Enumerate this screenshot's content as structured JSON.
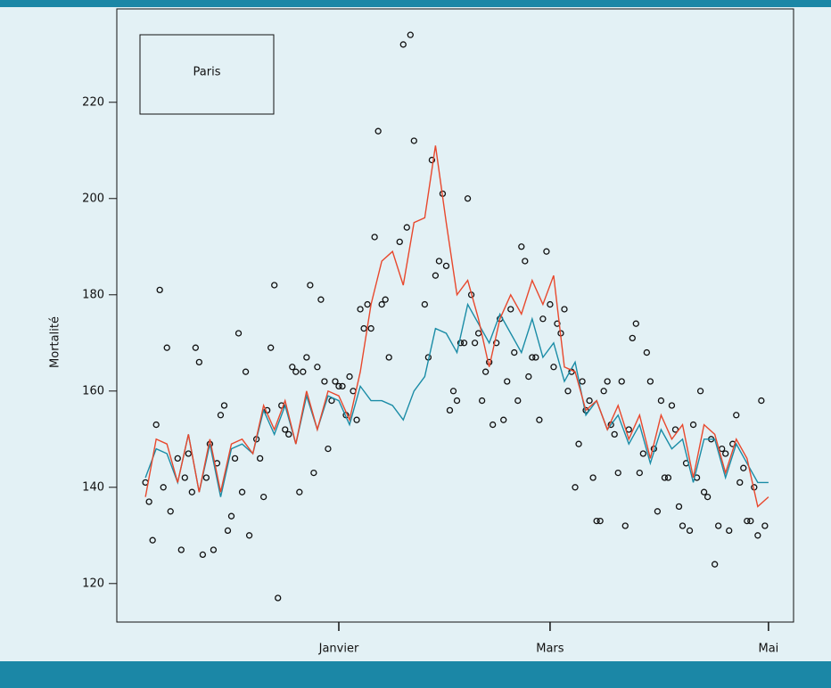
{
  "chart_data": {
    "type": "line",
    "title": "Paris",
    "y_label": "Mortalité",
    "xlim": [
      -62,
      127
    ],
    "ylim": [
      112,
      239.4
    ],
    "xticks": [
      {
        "value": 0,
        "label": "Janvier"
      },
      {
        "value": 59,
        "label": "Mars"
      },
      {
        "value": 120,
        "label": "Mai"
      }
    ],
    "yticks": [
      120,
      140,
      160,
      180,
      200,
      220
    ],
    "series": [
      {
        "type": "scatter",
        "color": "#111111",
        "x": [
          -54,
          -53,
          -52,
          -51,
          -50,
          -49,
          -48,
          -47,
          -45,
          -44,
          -43,
          -42,
          -41,
          -40,
          -39,
          -38,
          -37,
          -36,
          -35,
          -34,
          -33,
          -32,
          -31,
          -30,
          -29,
          -28,
          -27,
          -26,
          -25,
          -23,
          -22,
          -21,
          -20,
          -19,
          -18,
          -17,
          -16,
          -15,
          -14,
          -13,
          -12,
          -11,
          -10,
          -9,
          -8,
          -7,
          -6,
          -5,
          -4,
          -3,
          -2,
          -1,
          0,
          1,
          2,
          3,
          4,
          5,
          6,
          7,
          8,
          9,
          10,
          11,
          12,
          13,
          14,
          17,
          18,
          19,
          20,
          21,
          24,
          25,
          26,
          27,
          28,
          29,
          30,
          31,
          32,
          33,
          34,
          35,
          36,
          37,
          38,
          39,
          40,
          41,
          42,
          43,
          44,
          45,
          46,
          47,
          48,
          49,
          50,
          51,
          52,
          53,
          54,
          55,
          56,
          57,
          58,
          59,
          60,
          61,
          62,
          63,
          64,
          65,
          66,
          67,
          68,
          69,
          70,
          71,
          72,
          73,
          74,
          75,
          76,
          77,
          78,
          79,
          80,
          81,
          82,
          83,
          84,
          85,
          86,
          87,
          88,
          89,
          90,
          91,
          92,
          93,
          94,
          95,
          96,
          97,
          98,
          99,
          100,
          101,
          102,
          103,
          104,
          105,
          106,
          107,
          108,
          109,
          110,
          111,
          112,
          113,
          114,
          115,
          116,
          117,
          118,
          119
        ],
        "values": [
          141,
          137,
          129,
          153,
          181,
          140,
          169,
          135,
          146,
          127,
          142,
          147,
          139,
          169,
          166,
          126,
          142,
          149,
          127,
          145,
          155,
          157,
          131,
          134,
          146,
          172,
          139,
          164,
          130,
          150,
          146,
          138,
          156,
          169,
          182,
          117,
          157,
          152,
          151,
          165,
          164,
          139,
          164,
          167,
          182,
          143,
          165,
          179,
          162,
          148,
          158,
          162,
          161,
          161,
          155,
          163,
          160,
          154,
          177,
          173,
          178,
          173,
          192,
          214,
          178,
          179,
          167,
          191,
          232,
          194,
          234,
          212,
          178,
          167,
          208,
          184,
          187,
          201,
          186,
          156,
          160,
          158,
          170,
          170,
          200,
          180,
          170,
          172,
          158,
          164,
          166,
          153,
          170,
          175,
          154,
          162,
          177,
          168,
          158,
          190,
          187,
          163,
          167,
          167,
          154,
          175,
          189,
          178,
          165,
          174,
          172,
          177,
          160,
          164,
          140,
          149,
          162,
          156,
          158,
          142,
          133,
          133,
          160,
          162,
          153,
          151,
          143,
          162,
          132,
          152,
          171,
          174,
          143,
          147,
          168,
          162,
          148,
          135,
          158,
          142,
          142,
          157,
          152,
          136,
          132,
          145,
          131,
          153,
          142,
          160,
          139,
          138,
          150,
          124,
          132,
          148,
          147,
          131,
          149,
          155,
          141,
          144,
          133,
          133,
          140,
          130,
          158,
          132
        ]
      },
      {
        "type": "line",
        "color": "#1a8ca6",
        "x": [
          -54,
          -51,
          -48,
          -45,
          -42,
          -39,
          -36,
          -33,
          -30,
          -27,
          -24,
          -21,
          -18,
          -15,
          -12,
          -9,
          -6,
          -3,
          0,
          3,
          6,
          9,
          12,
          15,
          18,
          21,
          24,
          27,
          30,
          33,
          36,
          39,
          42,
          45,
          48,
          51,
          54,
          57,
          60,
          63,
          66,
          69,
          72,
          75,
          78,
          81,
          84,
          87,
          90,
          93,
          96,
          99,
          102,
          105,
          108,
          111,
          114,
          117,
          120
        ],
        "values": [
          142,
          148,
          147,
          141,
          151,
          139,
          149,
          138,
          148,
          149,
          147,
          156,
          151,
          157,
          149,
          159,
          152,
          159,
          158,
          153,
          161,
          158,
          158,
          157,
          154,
          160,
          163,
          173,
          172,
          168,
          178,
          174,
          170,
          176,
          172,
          168,
          175,
          167,
          170,
          162,
          166,
          155,
          158,
          152,
          155,
          149,
          153,
          145,
          152,
          148,
          150,
          141,
          150,
          150,
          142,
          149,
          145,
          141,
          141
        ]
      },
      {
        "type": "line",
        "color": "#e8482d",
        "x": [
          -54,
          -51,
          -48,
          -45,
          -42,
          -39,
          -36,
          -33,
          -30,
          -27,
          -24,
          -21,
          -18,
          -15,
          -12,
          -9,
          -6,
          -3,
          0,
          3,
          6,
          9,
          12,
          15,
          18,
          21,
          24,
          27,
          30,
          33,
          36,
          39,
          42,
          45,
          48,
          51,
          54,
          57,
          60,
          63,
          66,
          69,
          72,
          75,
          78,
          81,
          84,
          87,
          90,
          93,
          96,
          99,
          102,
          105,
          108,
          111,
          114,
          117,
          120
        ],
        "values": [
          138,
          150,
          149,
          141,
          151,
          139,
          150,
          139,
          149,
          150,
          147,
          157,
          152,
          158,
          149,
          160,
          152,
          160,
          159,
          154,
          164,
          178,
          187,
          189,
          182,
          195,
          196,
          211,
          195,
          180,
          183,
          175,
          165,
          175,
          180,
          176,
          183,
          178,
          184,
          165,
          164,
          156,
          158,
          152,
          157,
          150,
          155,
          146,
          155,
          150,
          153,
          142,
          153,
          151,
          143,
          150,
          146,
          136,
          138
        ]
      }
    ]
  }
}
